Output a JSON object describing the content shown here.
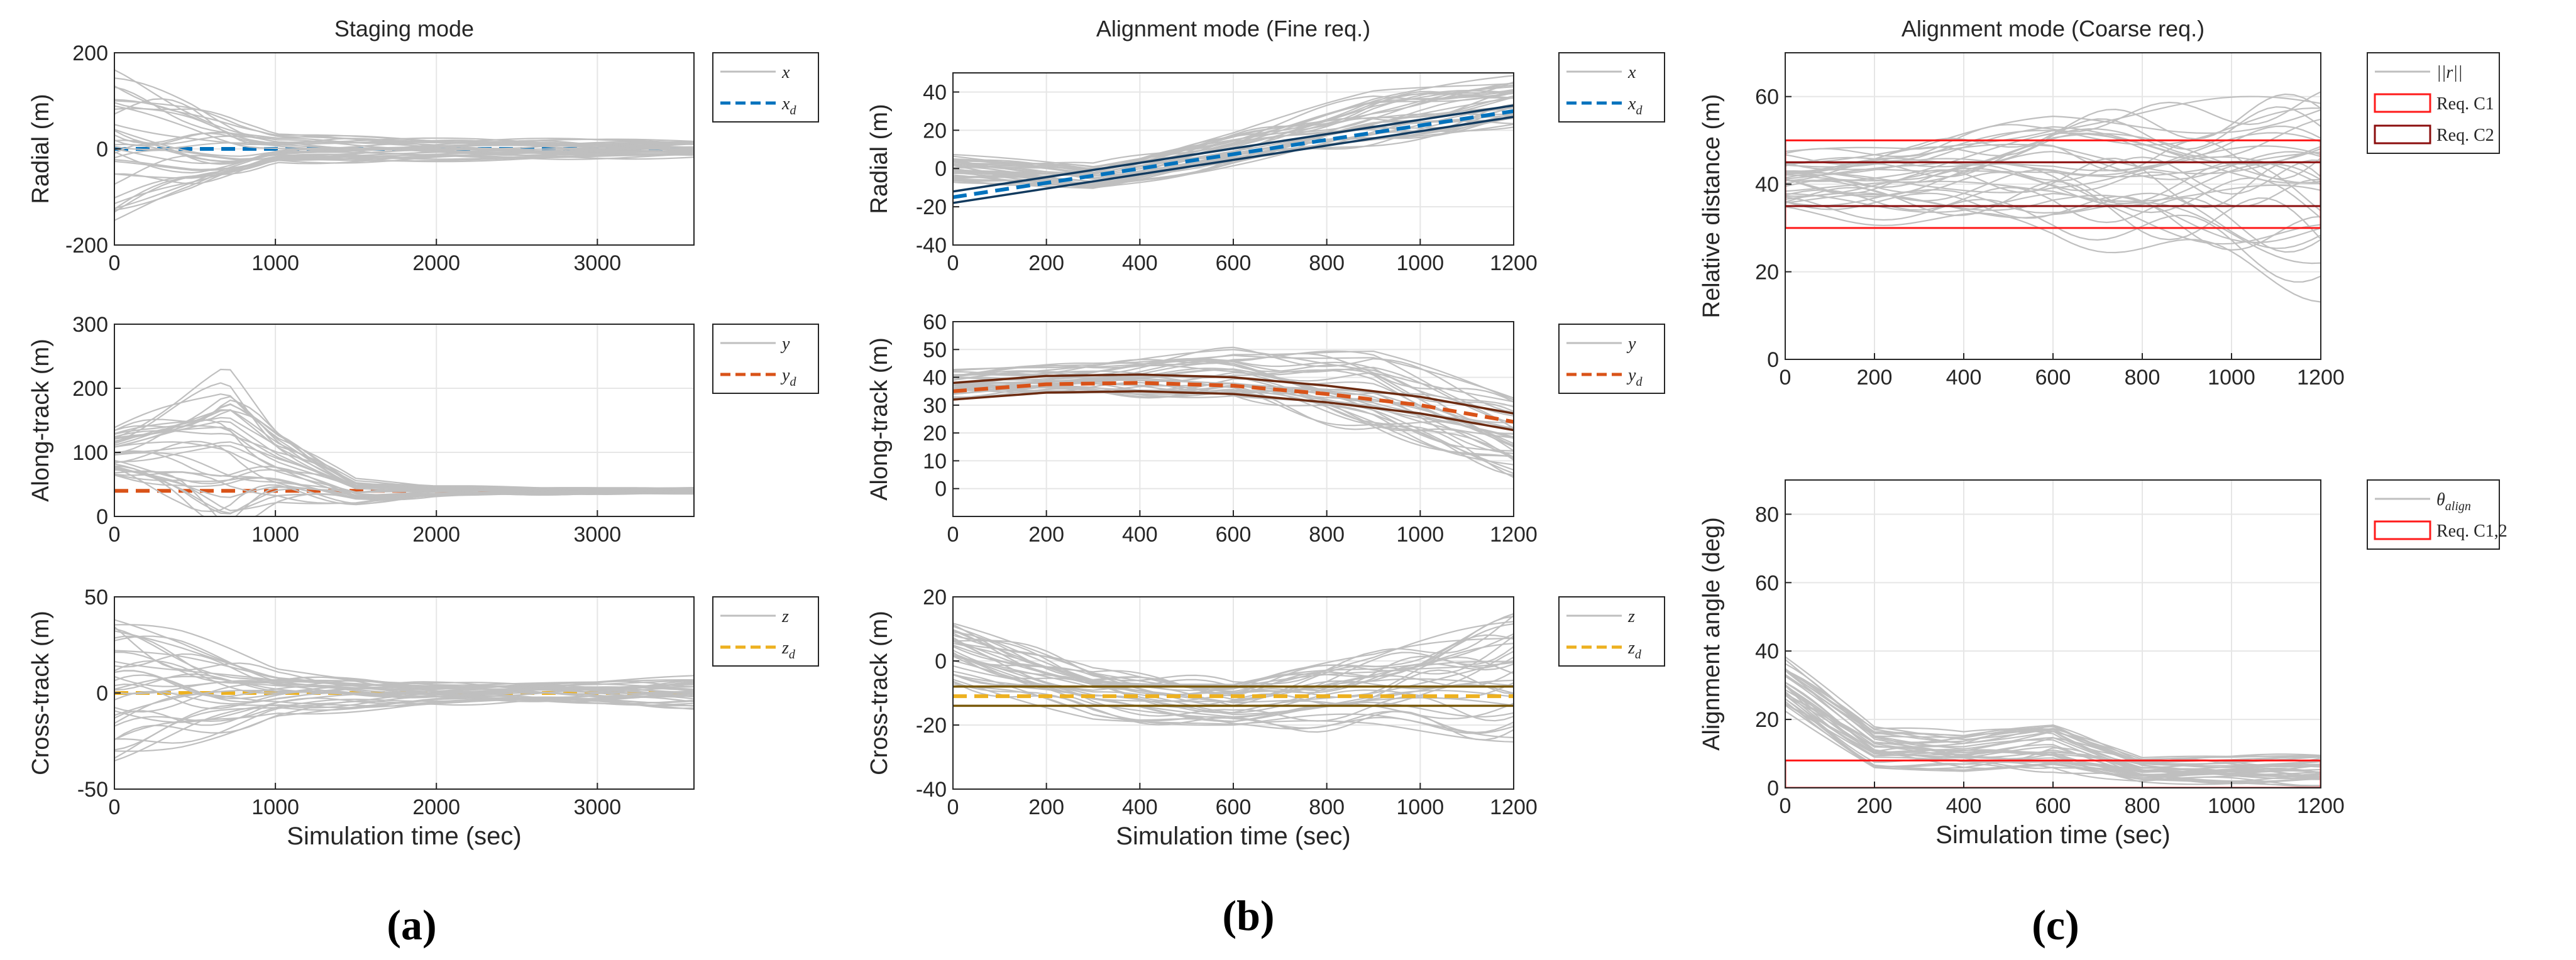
{
  "chart_data": [
    {
      "type": "line",
      "panel": "a-radial",
      "title": "Staging mode",
      "xlabel": "",
      "ylabel": "Radial (m)",
      "xlim": [
        0,
        3600
      ],
      "ylim": [
        -200,
        200
      ],
      "xticks": [
        0,
        1000,
        2000,
        3000
      ],
      "xtick_labels": [
        "0",
        "1000",
        "2000",
        "3000"
      ],
      "yticks": [
        -200,
        0,
        200
      ],
      "ytick_labels": [
        "-200",
        "0",
        "200"
      ],
      "legend": [
        "x",
        "x_d"
      ],
      "legend_display": [
        "x",
        "x"
      ],
      "legend_sub": [
        "",
        "d"
      ],
      "series": [
        {
          "name": "x_d",
          "color": "#0072BD",
          "dash": true,
          "x": [
            0,
            3600
          ],
          "values": [
            0,
            0
          ]
        },
        {
          "name": "x (Monte Carlo runs)",
          "color": "#bfbfbf",
          "spread": true,
          "x": [
            0,
            500,
            800,
            1000,
            2000,
            3000,
            3600
          ],
          "center": [
            10,
            0,
            -5,
            0,
            0,
            0,
            0
          ],
          "amp": [
            160,
            110,
            60,
            30,
            25,
            20,
            20
          ]
        }
      ]
    },
    {
      "type": "line",
      "panel": "a-along",
      "title": "",
      "xlabel": "",
      "ylabel": "Along-track (m)",
      "xlim": [
        0,
        3600
      ],
      "ylim": [
        0,
        300
      ],
      "xticks": [
        0,
        1000,
        2000,
        3000
      ],
      "xtick_labels": [
        "0",
        "1000",
        "2000",
        "3000"
      ],
      "yticks": [
        0,
        100,
        200,
        300
      ],
      "ytick_labels": [
        "0",
        "100",
        "200",
        "300"
      ],
      "legend": [
        "y",
        "y_d"
      ],
      "legend_display": [
        "y",
        "y"
      ],
      "legend_sub": [
        "",
        "d"
      ],
      "series": [
        {
          "name": "y_d",
          "color": "#D95319",
          "dash": true,
          "x": [
            0,
            3600
          ],
          "values": [
            40,
            40
          ]
        },
        {
          "name": "y (Monte Carlo runs)",
          "color": "#bfbfbf",
          "spread": true,
          "x": [
            0,
            400,
            700,
            1000,
            1500,
            2000,
            3000,
            3600
          ],
          "center": [
            100,
            110,
            110,
            80,
            40,
            40,
            40,
            40
          ],
          "amp": [
            40,
            80,
            120,
            60,
            20,
            8,
            5,
            5
          ]
        }
      ]
    },
    {
      "type": "line",
      "panel": "a-cross",
      "title": "",
      "xlabel": "Simulation time (sec)",
      "ylabel": "Cross-track (m)",
      "xlim": [
        0,
        3600
      ],
      "ylim": [
        -50,
        50
      ],
      "xticks": [
        0,
        1000,
        2000,
        3000
      ],
      "xtick_labels": [
        "0",
        "1000",
        "2000",
        "3000"
      ],
      "yticks": [
        -50,
        0,
        50
      ],
      "ytick_labels": [
        "-50",
        "0",
        "50"
      ],
      "legend": [
        "z",
        "z_d"
      ],
      "legend_display": [
        "z",
        "z"
      ],
      "legend_sub": [
        "",
        "d"
      ],
      "series": [
        {
          "name": "z_d",
          "color": "#EDB120",
          "dash": true,
          "x": [
            0,
            3600
          ],
          "values": [
            0,
            0
          ]
        },
        {
          "name": "z (Monte Carlo runs)",
          "color": "#bfbfbf",
          "spread": true,
          "x": [
            0,
            400,
            1000,
            2000,
            3000,
            3600
          ],
          "center": [
            0,
            0,
            0,
            0,
            0,
            0
          ],
          "amp": [
            40,
            30,
            12,
            6,
            6,
            8
          ]
        }
      ]
    },
    {
      "type": "line",
      "panel": "b-radial",
      "title": "Alignment mode (Fine req.)",
      "xlabel": "",
      "ylabel": "Radial (m)",
      "xlim": [
        0,
        1200
      ],
      "ylim": [
        -40,
        50
      ],
      "xticks": [
        0,
        200,
        400,
        600,
        800,
        1000,
        1200
      ],
      "xtick_labels": [
        "0",
        "200",
        "400",
        "600",
        "800",
        "1000",
        "1200"
      ],
      "yticks": [
        -40,
        -20,
        0,
        20,
        40
      ],
      "ytick_labels": [
        "-40",
        "-20",
        "0",
        "20",
        "40"
      ],
      "legend": [
        "x",
        "x_d"
      ],
      "legend_display": [
        "x",
        "x"
      ],
      "legend_sub": [
        "",
        "d"
      ],
      "series": [
        {
          "name": "x (Monte Carlo runs)",
          "color": "#bfbfbf",
          "spread": true,
          "x": [
            0,
            300,
            600,
            900,
            1200
          ],
          "center": [
            0,
            -5,
            10,
            25,
            35
          ],
          "amp": [
            8,
            8,
            10,
            15,
            15
          ]
        },
        {
          "name": "x_d",
          "color": "#0072BD",
          "dash": true,
          "x": [
            0,
            1200
          ],
          "values": [
            -15,
            30
          ]
        },
        {
          "name": "x_d upper bound",
          "color": "#123a5e",
          "dash": false,
          "thin": true,
          "x": [
            0,
            1200
          ],
          "values": [
            -12,
            33
          ]
        },
        {
          "name": "x_d lower bound",
          "color": "#123a5e",
          "dash": false,
          "thin": true,
          "x": [
            0,
            1200
          ],
          "values": [
            -18,
            27
          ]
        }
      ]
    },
    {
      "type": "line",
      "panel": "b-along",
      "title": "",
      "xlabel": "",
      "ylabel": "Along-track (m)",
      "xlim": [
        0,
        1200
      ],
      "ylim": [
        -10,
        60
      ],
      "xticks": [
        0,
        200,
        400,
        600,
        800,
        1000,
        1200
      ],
      "xtick_labels": [
        "0",
        "200",
        "400",
        "600",
        "800",
        "1000",
        "1200"
      ],
      "yticks": [
        0,
        10,
        20,
        30,
        40,
        50,
        60
      ],
      "ytick_labels": [
        "0",
        "10",
        "20",
        "30",
        "40",
        "50",
        "60"
      ],
      "legend": [
        "y",
        "y_d"
      ],
      "legend_display": [
        "y",
        "y"
      ],
      "legend_sub": [
        "",
        "d"
      ],
      "series": [
        {
          "name": "y (Monte Carlo runs)",
          "color": "#bfbfbf",
          "spread": true,
          "x": [
            0,
            300,
            600,
            900,
            1200
          ],
          "center": [
            38,
            40,
            42,
            35,
            20
          ],
          "amp": [
            5,
            6,
            10,
            15,
            15
          ]
        },
        {
          "name": "y_d",
          "color": "#D95319",
          "dash": true,
          "x": [
            0,
            200,
            400,
            600,
            800,
            1000,
            1200
          ],
          "values": [
            35,
            37.5,
            38,
            37,
            34,
            30,
            24
          ]
        },
        {
          "name": "y_d upper bound",
          "color": "#6b2a10",
          "dash": false,
          "thin": true,
          "x": [
            0,
            200,
            400,
            600,
            800,
            1000,
            1200
          ],
          "values": [
            38,
            40.5,
            41,
            40,
            37,
            33,
            27
          ]
        },
        {
          "name": "y_d lower bound",
          "color": "#6b2a10",
          "dash": false,
          "thin": true,
          "x": [
            0,
            200,
            400,
            600,
            800,
            1000,
            1200
          ],
          "values": [
            32,
            34.5,
            35,
            34,
            31,
            27,
            21
          ]
        }
      ]
    },
    {
      "type": "line",
      "panel": "b-cross",
      "title": "",
      "xlabel": "Simulation time (sec)",
      "ylabel": "Cross-track (m)",
      "xlim": [
        0,
        1200
      ],
      "ylim": [
        -40,
        20
      ],
      "xticks": [
        0,
        200,
        400,
        600,
        800,
        1000,
        1200
      ],
      "xtick_labels": [
        "0",
        "200",
        "400",
        "600",
        "800",
        "1000",
        "1200"
      ],
      "yticks": [
        -40,
        -20,
        0,
        20
      ],
      "ytick_labels": [
        "-40",
        "-20",
        "0",
        "20"
      ],
      "legend": [
        "z",
        "z_d"
      ],
      "legend_display": [
        "z",
        "z"
      ],
      "legend_sub": [
        "",
        "d"
      ],
      "series": [
        {
          "name": "z (Monte Carlo runs)",
          "color": "#bfbfbf",
          "spread": true,
          "x": [
            0,
            300,
            600,
            900,
            1200
          ],
          "center": [
            2,
            -10,
            -14,
            -10,
            -5
          ],
          "amp": [
            10,
            8,
            8,
            12,
            20
          ]
        },
        {
          "name": "z_d",
          "color": "#EDB120",
          "dash": true,
          "x": [
            0,
            1200
          ],
          "values": [
            -11,
            -11
          ]
        },
        {
          "name": "z_d upper bound",
          "color": "#7a5a0c",
          "dash": false,
          "thin": true,
          "x": [
            0,
            1200
          ],
          "values": [
            -8,
            -8
          ]
        },
        {
          "name": "z_d lower bound",
          "color": "#7a5a0c",
          "dash": false,
          "thin": true,
          "x": [
            0,
            1200
          ],
          "values": [
            -14,
            -14
          ]
        }
      ]
    },
    {
      "type": "line",
      "panel": "c-distance",
      "title": "Alignment mode (Coarse req.)",
      "xlabel": "",
      "ylabel": "Relative distance (m)",
      "xlim": [
        0,
        1200
      ],
      "ylim": [
        0,
        70
      ],
      "xticks": [
        0,
        200,
        400,
        600,
        800,
        1000,
        1200
      ],
      "xtick_labels": [
        "0",
        "200",
        "400",
        "600",
        "800",
        "1000",
        "1200"
      ],
      "yticks": [
        0,
        20,
        40,
        60
      ],
      "ytick_labels": [
        "0",
        "20",
        "40",
        "60"
      ],
      "legend": [
        "||r||",
        "Req. C1",
        "Req. C2"
      ],
      "legend_display": [
        "||r||",
        "Req. C1",
        "Req. C2"
      ],
      "legend_sub": [
        "",
        "",
        ""
      ],
      "series": [
        {
          "name": "||r|| (Monte Carlo runs)",
          "color": "#bfbfbf",
          "spread": true,
          "x": [
            0,
            300,
            600,
            900,
            1200
          ],
          "center": [
            40,
            40,
            42,
            40,
            38
          ],
          "amp": [
            8,
            10,
            15,
            20,
            25
          ]
        },
        {
          "name": "Req. C1",
          "color": "#ff1a1a",
          "box": true,
          "x": [
            0,
            1200
          ],
          "y": [
            30,
            50
          ]
        },
        {
          "name": "Req. C2",
          "color": "#8b0d0d",
          "box": true,
          "x": [
            0,
            1200
          ],
          "y": [
            35,
            45
          ]
        }
      ]
    },
    {
      "type": "line",
      "panel": "c-angle",
      "title": "",
      "xlabel": "Simulation time (sec)",
      "ylabel": "Alignment angle (deg)",
      "xlim": [
        0,
        1200
      ],
      "ylim": [
        0,
        90
      ],
      "xticks": [
        0,
        200,
        400,
        600,
        800,
        1000,
        1200
      ],
      "xtick_labels": [
        "0",
        "200",
        "400",
        "600",
        "800",
        "1000",
        "1200"
      ],
      "yticks": [
        0,
        20,
        40,
        60,
        80
      ],
      "ytick_labels": [
        "0",
        "20",
        "40",
        "60",
        "80"
      ],
      "legend": [
        "theta_align",
        "Req. C1,2"
      ],
      "legend_display": [
        "θ",
        "Req. C1,2"
      ],
      "legend_sub": [
        "align",
        ""
      ],
      "series": [
        {
          "name": "theta_align (Monte Carlo runs)",
          "color": "#bfbfbf",
          "spread": true,
          "x": [
            0,
            200,
            400,
            600,
            800,
            1000,
            1200
          ],
          "center": [
            30,
            12,
            10,
            12,
            5,
            5,
            5
          ],
          "amp": [
            8,
            6,
            6,
            8,
            4,
            4,
            5
          ]
        },
        {
          "name": "Req. C1,2",
          "color": "#ff1a1a",
          "box": true,
          "x": [
            0,
            1200
          ],
          "y": [
            0,
            8
          ]
        }
      ]
    }
  ],
  "panel_labels": [
    "(a)",
    "(b)",
    "(c)"
  ]
}
